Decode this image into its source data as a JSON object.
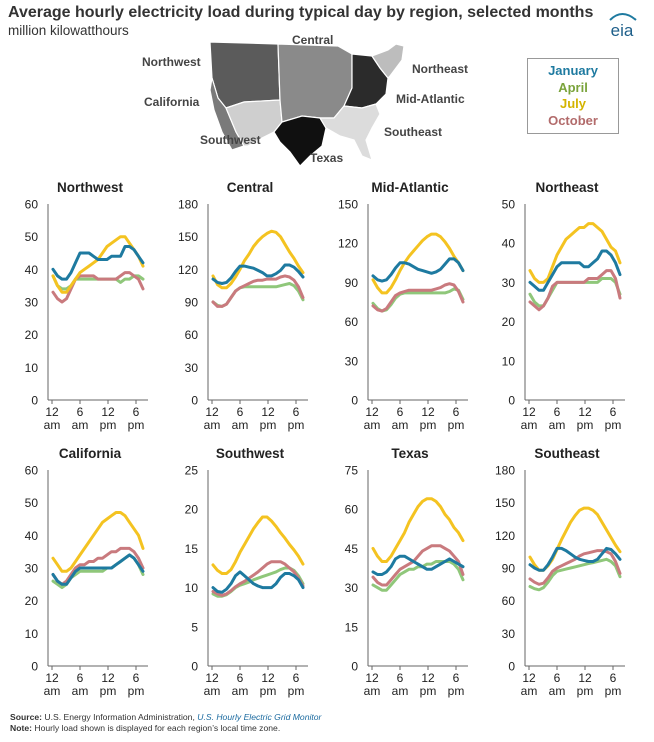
{
  "header": {
    "title": "Average hourly electricity load during typical day by region, selected months",
    "subtitle": "million kilowatthours",
    "logo_text": "eia"
  },
  "map": {
    "labels": [
      "Northwest",
      "Central",
      "Northeast",
      "California",
      "Mid-Atlantic",
      "Southwest",
      "Southeast",
      "Texas"
    ]
  },
  "legend": [
    {
      "name": "January",
      "color": "#1e7aa0"
    },
    {
      "name": "April",
      "color": "#7aa33b"
    },
    {
      "name": "July",
      "color": "#d4b400"
    },
    {
      "name": "October",
      "color": "#b26b6b"
    }
  ],
  "colors": {
    "January": "#1e7aa0",
    "April": "#8fc77a",
    "July": "#f4c321",
    "October": "#c97a7e"
  },
  "footer": {
    "source_label": "Source:",
    "source_text": "U.S. Energy Information Administration,",
    "source_link": "U.S. Hourly Electric Grid Monitor",
    "note_label": "Note:",
    "note_text": "Hourly load shown is displayed for each region’s local time zone."
  },
  "chart_data": [
    {
      "type": "line",
      "title": "Northwest",
      "ylim": [
        0,
        60
      ],
      "yticks": [
        0,
        10,
        20,
        30,
        40,
        50,
        60
      ],
      "x_ticks": [
        "12\nam",
        "6\nam",
        "12\npm",
        "6\npm"
      ],
      "series": [
        {
          "name": "January",
          "values": [
            40,
            38,
            37,
            37,
            39,
            42,
            45,
            45,
            45,
            44,
            43,
            43,
            43,
            44,
            44,
            44,
            47,
            47,
            46,
            44,
            42
          ]
        },
        {
          "name": "April",
          "values": [
            38,
            35,
            34,
            34,
            35,
            37,
            37,
            37,
            37,
            37,
            37,
            37,
            37,
            37,
            37,
            36,
            37,
            37,
            38,
            38,
            37
          ]
        },
        {
          "name": "July",
          "values": [
            38,
            35,
            33,
            33,
            35,
            37,
            39,
            40,
            41,
            42,
            43,
            45,
            47,
            48,
            49,
            50,
            50,
            48,
            46,
            44,
            41
          ]
        },
        {
          "name": "October",
          "values": [
            33,
            31,
            30,
            31,
            34,
            37,
            38,
            38,
            38,
            38,
            37,
            37,
            37,
            37,
            37,
            38,
            39,
            39,
            38,
            37,
            34
          ]
        }
      ]
    },
    {
      "type": "line",
      "title": "Central",
      "ylim": [
        0,
        180
      ],
      "yticks": [
        0,
        30,
        60,
        90,
        120,
        150,
        180
      ],
      "x_ticks": [
        "12\nam",
        "6\nam",
        "12\npm",
        "6\npm"
      ],
      "series": [
        {
          "name": "January",
          "values": [
            111,
            108,
            107,
            108,
            112,
            118,
            123,
            123,
            122,
            121,
            119,
            117,
            114,
            114,
            116,
            119,
            124,
            124,
            122,
            118,
            113
          ]
        },
        {
          "name": "April",
          "values": [
            90,
            87,
            86,
            88,
            94,
            100,
            103,
            104,
            104,
            104,
            104,
            104,
            104,
            104,
            104,
            105,
            106,
            107,
            105,
            100,
            92
          ]
        },
        {
          "name": "July",
          "values": [
            114,
            106,
            103,
            103,
            107,
            113,
            120,
            128,
            134,
            141,
            146,
            150,
            153,
            155,
            154,
            150,
            143,
            136,
            130,
            123,
            117
          ]
        },
        {
          "name": "October",
          "values": [
            90,
            86,
            86,
            88,
            94,
            100,
            103,
            105,
            107,
            109,
            110,
            110,
            111,
            111,
            111,
            113,
            114,
            113,
            110,
            104,
            94
          ]
        }
      ]
    },
    {
      "type": "line",
      "title": "Mid-Atlantic",
      "ylim": [
        0,
        150
      ],
      "yticks": [
        0,
        30,
        60,
        90,
        120,
        150
      ],
      "x_ticks": [
        "12\nam",
        "6\nam",
        "12\npm",
        "6\npm"
      ],
      "series": [
        {
          "name": "January",
          "values": [
            95,
            92,
            91,
            92,
            96,
            101,
            105,
            105,
            104,
            102,
            100,
            99,
            98,
            97,
            98,
            100,
            104,
            108,
            108,
            105,
            99
          ]
        },
        {
          "name": "April",
          "values": [
            74,
            70,
            68,
            69,
            73,
            78,
            81,
            82,
            82,
            82,
            82,
            82,
            82,
            82,
            82,
            82,
            82,
            83,
            85,
            84,
            77
          ]
        },
        {
          "name": "July",
          "values": [
            92,
            86,
            82,
            82,
            86,
            92,
            99,
            105,
            110,
            114,
            118,
            122,
            125,
            127,
            127,
            125,
            121,
            116,
            110,
            105,
            99
          ]
        },
        {
          "name": "October",
          "values": [
            72,
            69,
            68,
            70,
            75,
            80,
            82,
            83,
            84,
            84,
            84,
            84,
            84,
            84,
            85,
            86,
            88,
            89,
            88,
            83,
            75
          ]
        }
      ]
    },
    {
      "type": "line",
      "title": "Northeast",
      "ylim": [
        0,
        50
      ],
      "yticks": [
        0,
        10,
        20,
        30,
        40,
        50
      ],
      "x_ticks": [
        "12\nam",
        "6\nam",
        "12\npm",
        "6\npm"
      ],
      "series": [
        {
          "name": "January",
          "values": [
            30,
            29,
            28,
            28,
            30,
            32,
            34,
            35,
            35,
            35,
            35,
            35,
            34,
            34,
            35,
            36,
            38,
            38,
            37,
            35,
            32
          ]
        },
        {
          "name": "April",
          "values": [
            27,
            25,
            24,
            24,
            26,
            28,
            30,
            30,
            30,
            30,
            30,
            30,
            30,
            30,
            30,
            30,
            31,
            31,
            31,
            30,
            27
          ]
        },
        {
          "name": "July",
          "values": [
            33,
            31,
            30,
            30,
            31,
            34,
            37,
            39,
            41,
            42,
            43,
            44,
            44,
            45,
            45,
            44,
            43,
            41,
            39,
            38,
            35
          ]
        },
        {
          "name": "October",
          "values": [
            25,
            24,
            23,
            24,
            26,
            29,
            30,
            30,
            30,
            30,
            30,
            30,
            30,
            31,
            31,
            31,
            32,
            33,
            33,
            31,
            26
          ]
        }
      ]
    },
    {
      "type": "line",
      "title": "California",
      "ylim": [
        0,
        60
      ],
      "yticks": [
        0,
        10,
        20,
        30,
        40,
        50,
        60
      ],
      "x_ticks": [
        "12\nam",
        "6\nam",
        "12\npm",
        "6\npm"
      ],
      "series": [
        {
          "name": "January",
          "values": [
            28,
            26,
            25,
            25,
            27,
            29,
            30,
            30,
            30,
            30,
            30,
            30,
            30,
            30,
            31,
            32,
            33,
            34,
            33,
            31,
            29
          ]
        },
        {
          "name": "April",
          "values": [
            26,
            25,
            24,
            25,
            27,
            28,
            29,
            29,
            29,
            29,
            29,
            29,
            30,
            30,
            31,
            32,
            33,
            34,
            33,
            31,
            28
          ]
        },
        {
          "name": "July",
          "values": [
            33,
            31,
            29,
            29,
            30,
            32,
            34,
            36,
            38,
            40,
            42,
            44,
            45,
            46,
            47,
            47,
            46,
            44,
            42,
            40,
            36
          ]
        },
        {
          "name": "October",
          "values": [
            28,
            26,
            25,
            26,
            28,
            30,
            31,
            31,
            32,
            32,
            33,
            33,
            34,
            35,
            35,
            36,
            36,
            36,
            35,
            33,
            30
          ]
        }
      ]
    },
    {
      "type": "line",
      "title": "Southwest",
      "ylim": [
        0,
        25
      ],
      "yticks": [
        0,
        5,
        10,
        15,
        20,
        25
      ],
      "x_ticks": [
        "12\nam",
        "6\nam",
        "12\npm",
        "6\npm"
      ],
      "series": [
        {
          "name": "January",
          "values": [
            10,
            9.5,
            9.4,
            9.8,
            10.5,
            11.5,
            12,
            11.5,
            11,
            10.5,
            10.2,
            10,
            10,
            10,
            10.5,
            11.3,
            11.8,
            11.8,
            11.5,
            11,
            10
          ]
        },
        {
          "name": "April",
          "values": [
            9.2,
            8.9,
            8.9,
            9.1,
            9.5,
            10,
            10.3,
            10.5,
            10.7,
            11,
            11.2,
            11.4,
            11.6,
            11.8,
            12,
            12.3,
            12.5,
            12.5,
            12.2,
            11.5,
            10.5
          ]
        },
        {
          "name": "July",
          "values": [
            12.9,
            12.2,
            11.8,
            11.8,
            12.3,
            13.3,
            14.5,
            15.5,
            16.5,
            17.5,
            18.3,
            19,
            19,
            18.5,
            17.8,
            17,
            16.3,
            15.5,
            14.8,
            14,
            13
          ]
        },
        {
          "name": "October",
          "values": [
            9.5,
            9.2,
            9,
            9.2,
            9.6,
            10.1,
            10.5,
            10.8,
            11.2,
            11.6,
            12,
            12.5,
            13,
            13.3,
            13.3,
            13.3,
            13,
            12.5,
            12,
            11.2,
            10.2
          ]
        }
      ]
    },
    {
      "type": "line",
      "title": "Texas",
      "ylim": [
        0,
        75
      ],
      "yticks": [
        0,
        15,
        30,
        45,
        60,
        75
      ],
      "x_ticks": [
        "12\nam",
        "6\nam",
        "12\npm",
        "6\npm"
      ],
      "series": [
        {
          "name": "January",
          "values": [
            36,
            35,
            35,
            36,
            38,
            41,
            42,
            42,
            41,
            40,
            39,
            38,
            37,
            37,
            38,
            39,
            40,
            41,
            40,
            39,
            38
          ]
        },
        {
          "name": "April",
          "values": [
            31,
            30,
            29,
            29,
            31,
            33,
            35,
            36,
            37,
            37,
            38,
            38,
            39,
            39,
            40,
            40,
            40,
            40,
            39,
            37,
            33
          ]
        },
        {
          "name": "July",
          "values": [
            45,
            42,
            40,
            40,
            42,
            45,
            48,
            51,
            55,
            58,
            61,
            63,
            64,
            64,
            63,
            61,
            58,
            56,
            53,
            51,
            48
          ]
        },
        {
          "name": "October",
          "values": [
            34,
            32,
            31,
            31,
            33,
            35,
            37,
            38,
            39,
            40,
            42,
            44,
            45,
            46,
            46,
            46,
            45,
            44,
            42,
            40,
            35
          ]
        }
      ]
    },
    {
      "type": "line",
      "title": "Southeast",
      "ylim": [
        0,
        180
      ],
      "yticks": [
        0,
        30,
        60,
        90,
        120,
        150,
        180
      ],
      "x_ticks": [
        "12\nam",
        "6\nam",
        "12\npm",
        "6\npm"
      ],
      "series": [
        {
          "name": "January",
          "values": [
            93,
            90,
            88,
            88,
            93,
            100,
            108,
            108,
            106,
            103,
            100,
            98,
            97,
            96,
            96,
            98,
            103,
            108,
            107,
            103,
            98
          ]
        },
        {
          "name": "April",
          "values": [
            73,
            71,
            70,
            72,
            77,
            83,
            87,
            88,
            89,
            90,
            91,
            92,
            93,
            94,
            95,
            96,
            97,
            98,
            96,
            92,
            82
          ]
        },
        {
          "name": "July",
          "values": [
            100,
            93,
            88,
            88,
            92,
            98,
            107,
            116,
            124,
            132,
            138,
            143,
            145,
            145,
            143,
            139,
            132,
            125,
            118,
            111,
            105
          ]
        },
        {
          "name": "October",
          "values": [
            80,
            77,
            75,
            76,
            81,
            87,
            90,
            92,
            94,
            96,
            98,
            101,
            103,
            104,
            105,
            106,
            106,
            105,
            103,
            96,
            85
          ]
        }
      ]
    }
  ]
}
